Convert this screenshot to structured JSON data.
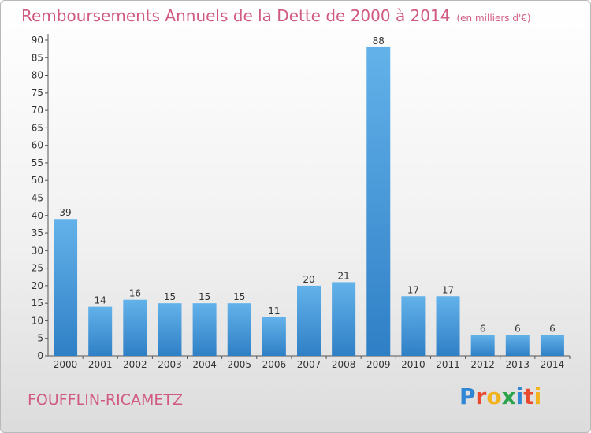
{
  "title": "Remboursements Annuels de la Dette de 2000 à 2014",
  "unit": "(en milliers d'€)",
  "commune": "FOUFFLIN-RICAMETZ",
  "logo": {
    "letters": [
      "P",
      "r",
      "o",
      "x",
      "i",
      "t",
      "i"
    ]
  },
  "colors": {
    "bar_light": "#63b2ea",
    "bar_dark": "#2f7fc6",
    "title": "#d05a80"
  },
  "chart_data": {
    "type": "bar",
    "categories": [
      "2000",
      "2001",
      "2002",
      "2003",
      "2004",
      "2005",
      "2006",
      "2007",
      "2008",
      "2009",
      "2010",
      "2011",
      "2012",
      "2013",
      "2014"
    ],
    "values": [
      39,
      14,
      16,
      15,
      15,
      15,
      11,
      20,
      21,
      88,
      17,
      17,
      6,
      6,
      6
    ],
    "title": "Remboursements Annuels de la Dette de 2000 à 2014",
    "xlabel": "",
    "ylabel": "",
    "ylim": [
      0,
      90
    ],
    "yticks": [
      0,
      5,
      10,
      15,
      20,
      25,
      30,
      35,
      40,
      45,
      50,
      55,
      60,
      65,
      70,
      75,
      80,
      85,
      90
    ],
    "grid": false,
    "legend": "none"
  }
}
